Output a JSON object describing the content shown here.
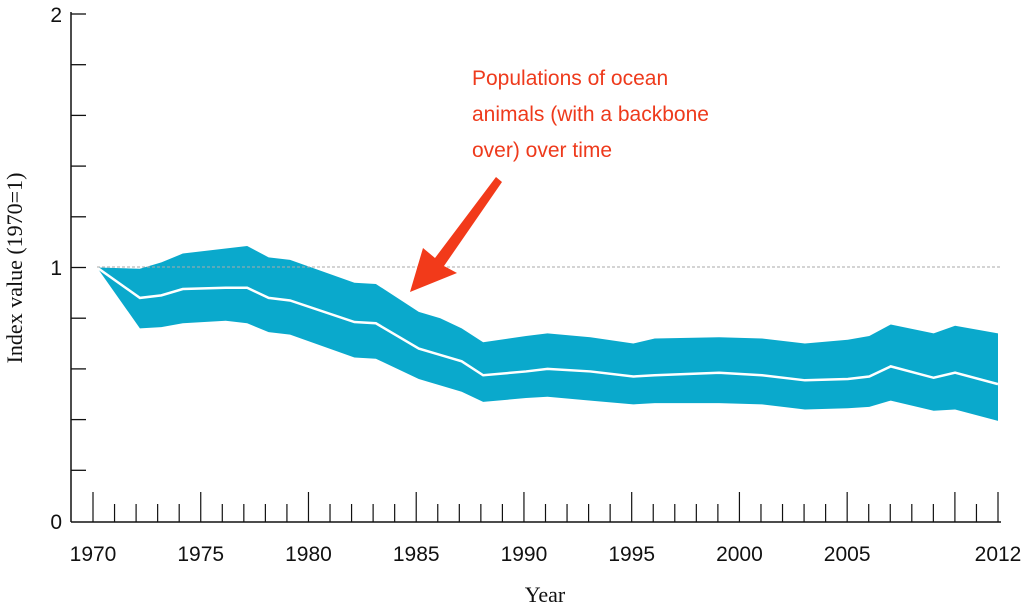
{
  "chart_data": {
    "type": "area",
    "title": "",
    "xlabel": "Year",
    "ylabel": "Index value (1970=1)",
    "xlim": [
      1970,
      2012
    ],
    "ylim": [
      0,
      2
    ],
    "x_tick_labels": [
      "1970",
      "1975",
      "1980",
      "1985",
      "1990",
      "1995",
      "2000",
      "2005",
      "2012"
    ],
    "y_tick_labels": [
      "0",
      "1",
      "2"
    ],
    "reference_line": {
      "y": 1,
      "style": "dashed",
      "color": "#aaaaaa"
    },
    "band_color": "#0aa9cc",
    "line_color": "#ffffff",
    "x": [
      1970,
      1972,
      1973,
      1974,
      1976,
      1977,
      1978,
      1979,
      1982,
      1983,
      1985,
      1986,
      1987,
      1988,
      1990,
      1991,
      1993,
      1995,
      1996,
      1999,
      2001,
      2003,
      2005,
      2006,
      2007,
      2009,
      2010,
      2012
    ],
    "series": [
      {
        "role": "index",
        "values": [
          1.0,
          0.88,
          0.89,
          0.915,
          0.92,
          0.92,
          0.88,
          0.87,
          0.785,
          0.78,
          0.68,
          0.655,
          0.63,
          0.575,
          0.59,
          0.6,
          0.59,
          0.57,
          0.575,
          0.585,
          0.575,
          0.555,
          0.56,
          0.57,
          0.61,
          0.565,
          0.585,
          0.54
        ]
      },
      {
        "role": "upper",
        "values": [
          1.0,
          0.995,
          1.02,
          1.055,
          1.075,
          1.085,
          1.04,
          1.03,
          0.94,
          0.935,
          0.825,
          0.8,
          0.76,
          0.705,
          0.73,
          0.74,
          0.725,
          0.7,
          0.72,
          0.725,
          0.72,
          0.7,
          0.715,
          0.73,
          0.775,
          0.74,
          0.77,
          0.74
        ]
      },
      {
        "role": "lower",
        "values": [
          1.0,
          0.76,
          0.765,
          0.78,
          0.79,
          0.78,
          0.745,
          0.735,
          0.645,
          0.64,
          0.56,
          0.535,
          0.51,
          0.47,
          0.485,
          0.49,
          0.475,
          0.46,
          0.465,
          0.465,
          0.46,
          0.44,
          0.445,
          0.45,
          0.475,
          0.435,
          0.44,
          0.395
        ]
      }
    ],
    "annotation": {
      "lines": [
        "Populations of ocean",
        "animals (with a backbone",
        "over) over time"
      ],
      "color": "#ee3a1c",
      "arrow": "red arrow pointing down-left at the band near 1985"
    }
  }
}
